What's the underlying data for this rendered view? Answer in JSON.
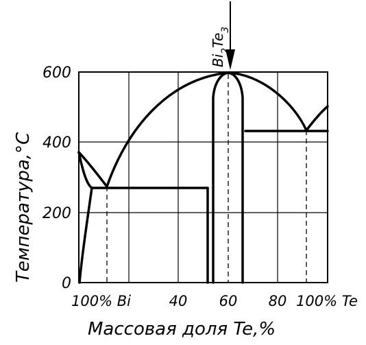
{
  "compound": {
    "prefix": "Bi",
    "sub1": "2",
    "mid": "Te",
    "sub2": "3"
  },
  "y_axis": {
    "label": "Температура,°С",
    "ticks": [
      "0",
      "200",
      "400",
      "600"
    ]
  },
  "x_axis": {
    "label": "Массовая доля Te,%",
    "ticks": [
      "100% Bi",
      "40",
      "60",
      "80",
      "100% Te"
    ]
  }
}
